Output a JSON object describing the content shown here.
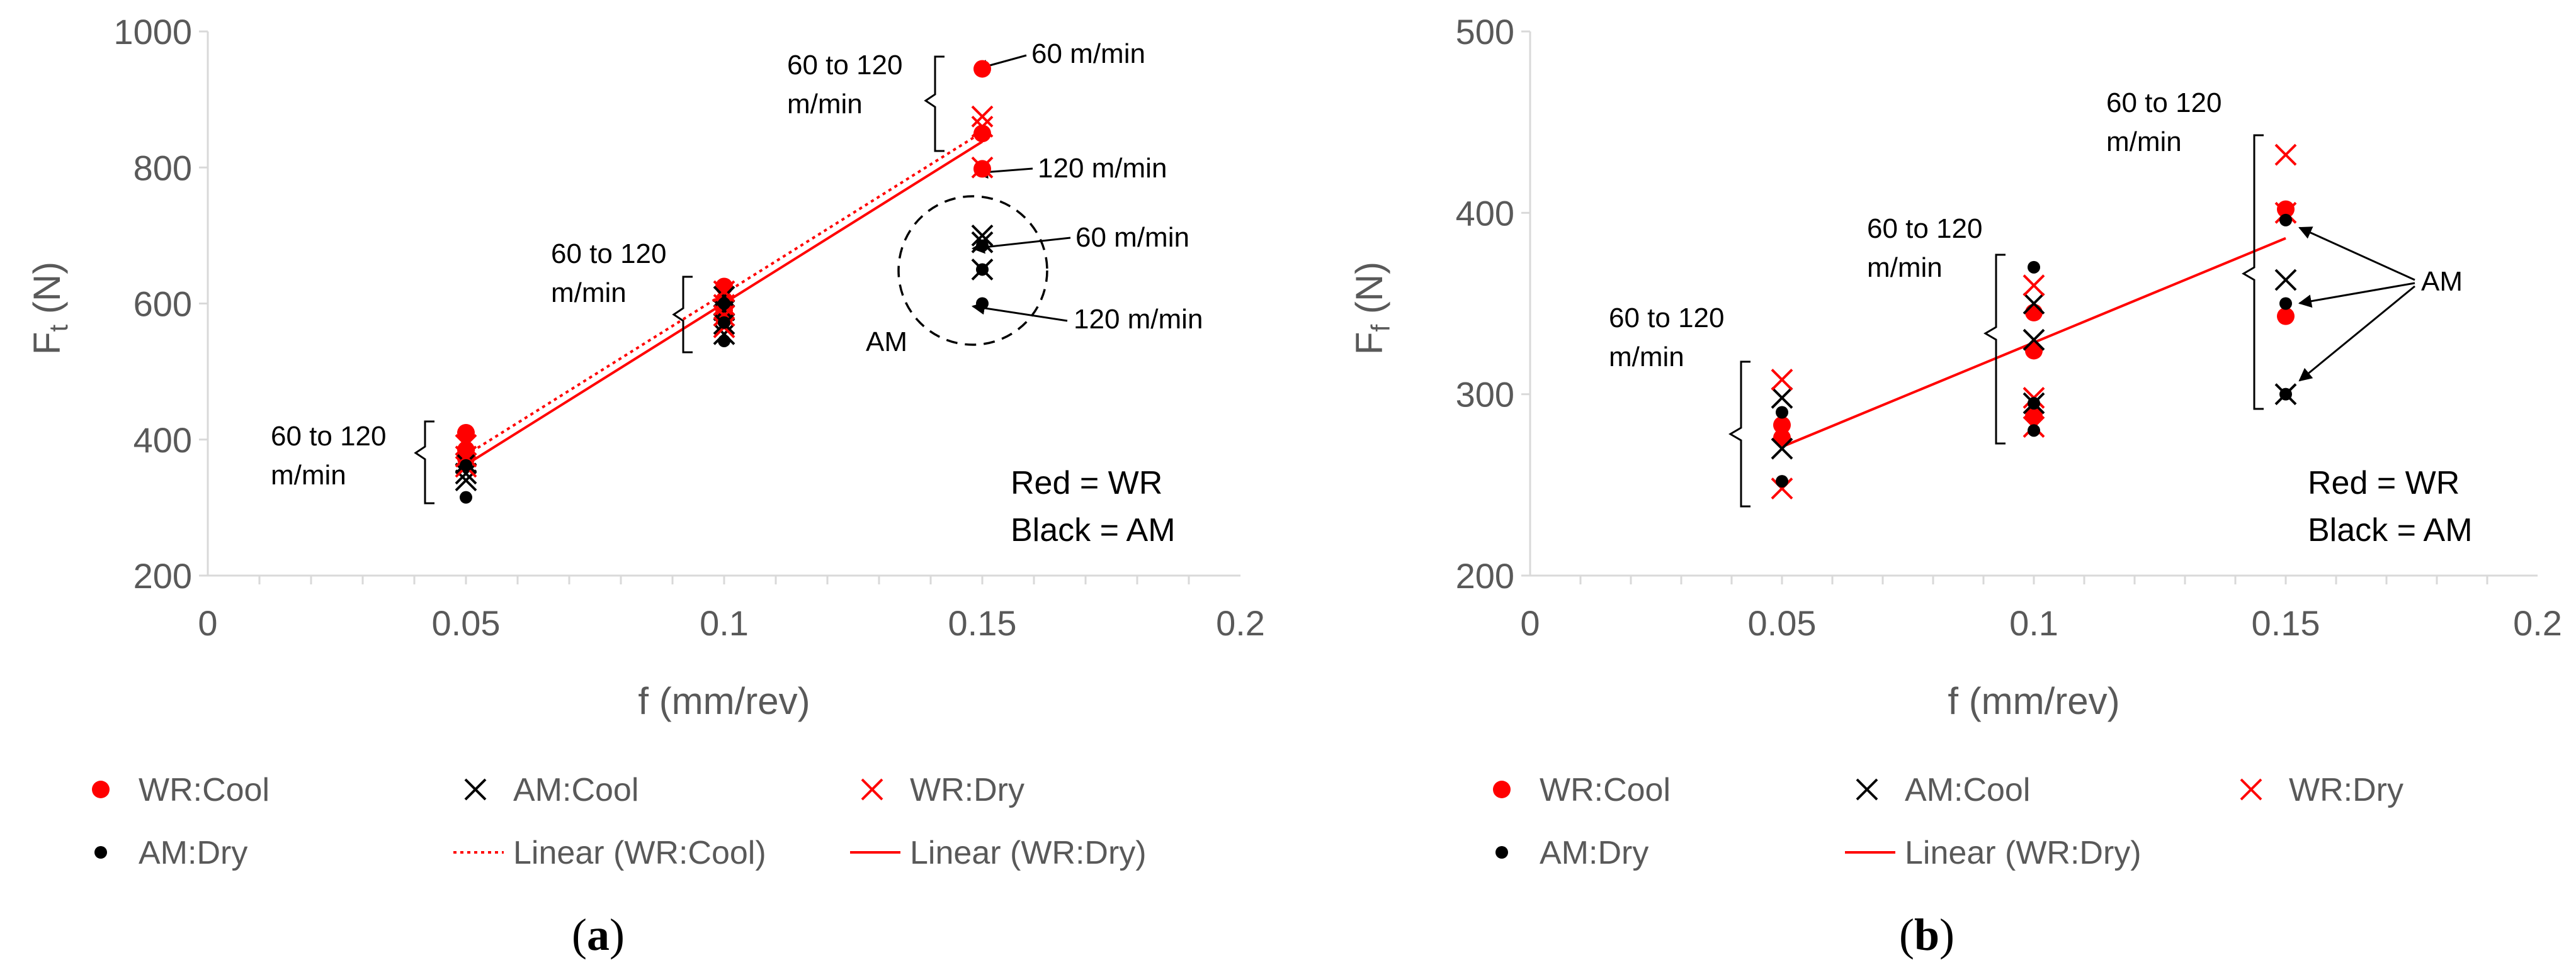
{
  "colors": {
    "wr": "#ff0000",
    "am": "#000000",
    "axis": "#d9d9d9",
    "text": "#595959"
  },
  "chart_data": [
    {
      "id": "a",
      "type": "scatter",
      "caption": {
        "open": "(",
        "letter": "a",
        "close": ")"
      },
      "xlabel": "f (mm/rev)",
      "ylabel": {
        "main": "F",
        "sub": "t",
        "unit": " (N)"
      },
      "xlim": [
        0,
        0.2
      ],
      "ylim": [
        200,
        1000
      ],
      "xticks": [
        0,
        0.05,
        0.1,
        0.15,
        0.2
      ],
      "xtick_labels": [
        "0",
        "0.05",
        "0.1",
        "0.15",
        "0.2"
      ],
      "yticks": [
        200,
        400,
        600,
        800,
        1000
      ],
      "ytick_labels": [
        "200",
        "400",
        "600",
        "800",
        "1000"
      ],
      "series": [
        {
          "name": "WR:Cool",
          "marker": "dot",
          "color": "#ff0000",
          "points": [
            [
              0.05,
              410
            ],
            [
              0.05,
              385
            ],
            [
              0.05,
              372
            ],
            [
              0.1,
              625
            ],
            [
              0.1,
              605
            ],
            [
              0.1,
              590
            ],
            [
              0.1,
              578
            ],
            [
              0.15,
              945
            ],
            [
              0.15,
              850
            ],
            [
              0.15,
              798
            ]
          ]
        },
        {
          "name": "AM:Cool",
          "marker": "x",
          "color": "#000000",
          "points": [
            [
              0.05,
              365
            ],
            [
              0.05,
              350
            ],
            [
              0.05,
              340
            ],
            [
              0.1,
              610
            ],
            [
              0.1,
              590
            ],
            [
              0.1,
              570
            ],
            [
              0.1,
              555
            ],
            [
              0.15,
              700
            ],
            [
              0.15,
              690
            ],
            [
              0.15,
              650
            ]
          ]
        },
        {
          "name": "WR:Dry",
          "marker": "x",
          "color": "#ff0000",
          "points": [
            [
              0.05,
              392
            ],
            [
              0.05,
              375
            ],
            [
              0.05,
              360
            ],
            [
              0.1,
              618
            ],
            [
              0.1,
              598
            ],
            [
              0.1,
              582
            ],
            [
              0.1,
              565
            ],
            [
              0.15,
              875
            ],
            [
              0.15,
              860
            ],
            [
              0.15,
              800
            ]
          ]
        },
        {
          "name": "AM:Dry",
          "marker": "smalldot",
          "color": "#000000",
          "points": [
            [
              0.05,
              362
            ],
            [
              0.05,
              315
            ],
            [
              0.1,
              600
            ],
            [
              0.1,
              572
            ],
            [
              0.1,
              545
            ],
            [
              0.15,
              685
            ],
            [
              0.15,
              650
            ],
            [
              0.15,
              600
            ]
          ]
        }
      ],
      "trendlines": [
        {
          "name": "Linear (WR:Cool)",
          "style": "dotted",
          "color": "#ff0000",
          "from": [
            0.05,
            377
          ],
          "to": [
            0.15,
            852
          ]
        },
        {
          "name": "Linear (WR:Dry)",
          "style": "solid",
          "color": "#ff0000",
          "from": [
            0.05,
            363
          ],
          "to": [
            0.15,
            838
          ]
        }
      ],
      "annotations": {
        "range_label_lines": [
          "60 to 120",
          "m/min"
        ],
        "speed_60": "60 m/min",
        "speed_120": "120 m/min",
        "am_label": "AM",
        "note_red": "Red = WR",
        "note_black": "Black = AM"
      },
      "legend": [
        {
          "label": "WR:Cool",
          "marker": "dot",
          "color": "#ff0000"
        },
        {
          "label": "AM:Cool",
          "marker": "x",
          "color": "#000000"
        },
        {
          "label": "WR:Dry",
          "marker": "x",
          "color": "#ff0000"
        },
        {
          "label": "AM:Dry",
          "marker": "smalldot",
          "color": "#000000"
        },
        {
          "label": "Linear (WR:Cool)",
          "marker": "dottedline",
          "color": "#ff0000"
        },
        {
          "label": "Linear (WR:Dry)",
          "marker": "line",
          "color": "#ff0000"
        }
      ]
    },
    {
      "id": "b",
      "type": "scatter",
      "caption": {
        "open": "(",
        "letter": "b",
        "close": ")"
      },
      "xlabel": "f (mm/rev)",
      "ylabel": {
        "main": "F",
        "sub": "f",
        "unit": " (N)"
      },
      "xlim": [
        0,
        0.2
      ],
      "ylim": [
        200,
        500
      ],
      "xticks": [
        0,
        0.05,
        0.1,
        0.15,
        0.2
      ],
      "xtick_labels": [
        "0",
        "0.05",
        "0.1",
        "0.15",
        "0.2"
      ],
      "yticks": [
        200,
        300,
        400,
        500
      ],
      "ytick_labels": [
        "200",
        "300",
        "400",
        "500"
      ],
      "series": [
        {
          "name": "WR:Cool",
          "marker": "dot",
          "color": "#ff0000",
          "points": [
            [
              0.05,
              283
            ],
            [
              0.05,
              276
            ],
            [
              0.1,
              345
            ],
            [
              0.1,
              324
            ],
            [
              0.1,
              288
            ],
            [
              0.15,
              402
            ],
            [
              0.15,
              343
            ]
          ]
        },
        {
          "name": "AM:Cool",
          "marker": "x",
          "color": "#000000",
          "points": [
            [
              0.05,
              298
            ],
            [
              0.05,
              270
            ],
            [
              0.1,
              350
            ],
            [
              0.1,
              330
            ],
            [
              0.1,
              295
            ],
            [
              0.15,
              363
            ],
            [
              0.15,
              300
            ]
          ]
        },
        {
          "name": "WR:Dry",
          "marker": "x",
          "color": "#ff0000",
          "points": [
            [
              0.05,
              308
            ],
            [
              0.05,
              248
            ],
            [
              0.1,
              360
            ],
            [
              0.1,
              298
            ],
            [
              0.1,
              282
            ],
            [
              0.15,
              432
            ],
            [
              0.15,
              400
            ]
          ]
        },
        {
          "name": "AM:Dry",
          "marker": "smalldot",
          "color": "#000000",
          "points": [
            [
              0.05,
              290
            ],
            [
              0.05,
              252
            ],
            [
              0.1,
              370
            ],
            [
              0.1,
              295
            ],
            [
              0.1,
              280
            ],
            [
              0.15,
              396
            ],
            [
              0.15,
              350
            ],
            [
              0.15,
              300
            ]
          ]
        }
      ],
      "trendlines": [
        {
          "name": "Linear (WR:Dry)",
          "style": "solid",
          "color": "#ff0000",
          "from": [
            0.05,
            271
          ],
          "to": [
            0.15,
            386
          ]
        }
      ],
      "annotations": {
        "range_label_lines": [
          "60 to 120",
          "m/min"
        ],
        "am_label": "AM",
        "note_red": "Red = WR",
        "note_black": "Black = AM"
      },
      "legend": [
        {
          "label": "WR:Cool",
          "marker": "dot",
          "color": "#ff0000"
        },
        {
          "label": "AM:Cool",
          "marker": "x",
          "color": "#000000"
        },
        {
          "label": "WR:Dry",
          "marker": "x",
          "color": "#ff0000"
        },
        {
          "label": "AM:Dry",
          "marker": "smalldot",
          "color": "#000000"
        },
        {
          "label": "Linear (WR:Dry)",
          "marker": "line",
          "color": "#ff0000"
        }
      ]
    }
  ]
}
